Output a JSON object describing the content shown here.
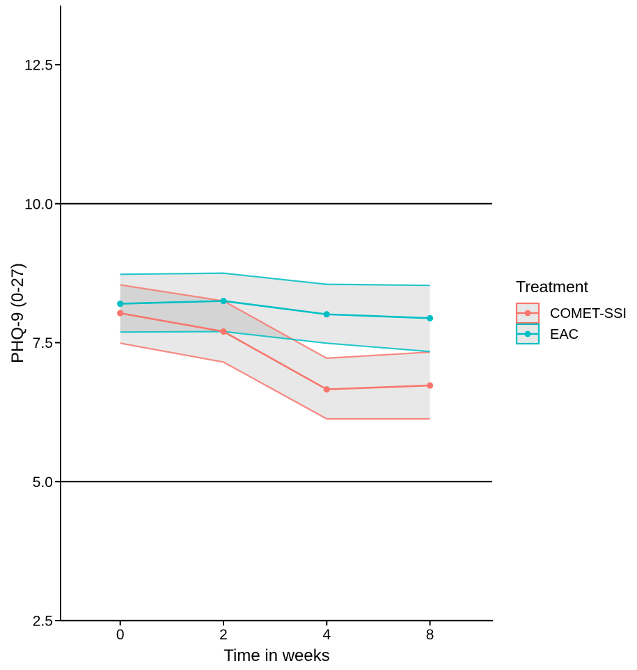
{
  "figure": {
    "kind": "statistical-line-chart-with-confidence-ribbons",
    "background": "#ffffff",
    "x_axis": {
      "label": "Time in weeks",
      "tick_labels": [
        "0",
        "2",
        "4",
        "8"
      ]
    },
    "y_axis": {
      "label": "PHQ-9 (0-27)",
      "tick_labels": [
        "2.5",
        "5.0",
        "7.5",
        "10.0",
        "12.5"
      ],
      "tick_values": [
        2.5,
        5.0,
        7.5,
        10.0,
        12.5
      ]
    },
    "legend": {
      "title": "Treatment",
      "items": [
        {
          "label": "COMET-SSI",
          "color": "#F8766D"
        },
        {
          "label": "EAC",
          "color": "#00BFC4"
        }
      ]
    }
  },
  "chart_data": {
    "type": "line",
    "title": "",
    "xlabel": "Time in weeks",
    "ylabel": "PHQ-9 (0-27)",
    "x_scale": "discrete",
    "categories": [
      "0",
      "2",
      "4",
      "8"
    ],
    "x_values_weeks": [
      0,
      2,
      4,
      8
    ],
    "ylim": [
      2.5,
      13.55
    ],
    "y_breaks": [
      2.5,
      5.0,
      7.5,
      10.0,
      12.5
    ],
    "grid": "off",
    "legend_position": "right",
    "legend_title": "Treatment",
    "reference_lines_y": [
      10.0,
      5.0
    ],
    "reference_line_color": "#000000",
    "ribbon_fill": "rgba(100,100,100,0.15)",
    "series": [
      {
        "name": "COMET-SSI",
        "color": "#F8766D",
        "mean": [
          8.03,
          7.7,
          6.66,
          6.73
        ],
        "lower": [
          7.49,
          7.15,
          6.13,
          6.13
        ],
        "upper": [
          8.54,
          8.25,
          7.22,
          7.33
        ]
      },
      {
        "name": "EAC",
        "color": "#00BFC4",
        "mean": [
          8.2,
          8.25,
          8.01,
          7.94
        ],
        "lower": [
          7.69,
          7.7,
          7.49,
          7.34
        ],
        "upper": [
          8.73,
          8.75,
          8.55,
          8.53
        ]
      }
    ]
  },
  "colors": {
    "axis_line": "#000000",
    "tick_text": "#000000",
    "title_text": "#000000",
    "legend_key_fill": "#E8E8E8"
  }
}
